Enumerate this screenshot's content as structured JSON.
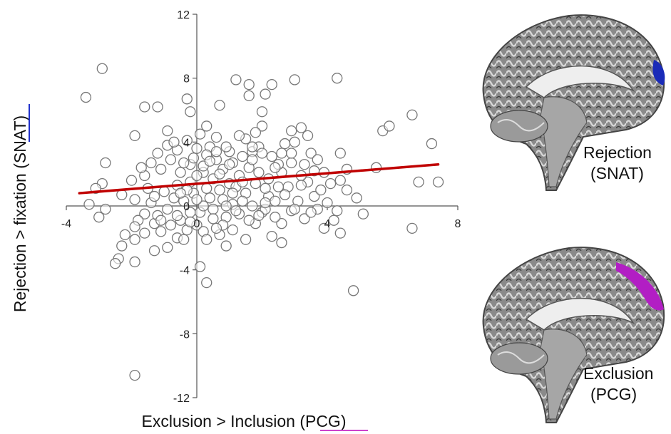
{
  "chart_data": {
    "type": "scatter",
    "xlabel_prefix": "Exclusion > Inclusion (",
    "xlabel_region": "PCG",
    "xlabel_suffix": ")",
    "ylabel_prefix": "Rejection > fixation (",
    "ylabel_region": "SNAT",
    "ylabel_suffix": ")",
    "xlim": [
      -4,
      8
    ],
    "ylim": [
      -12,
      12
    ],
    "x_ticks": [
      -4,
      0,
      4,
      8
    ],
    "y_ticks": [
      -12,
      -8,
      -4,
      0,
      4,
      8,
      12
    ],
    "trendline": {
      "x1": -3.6,
      "y1": 0.8,
      "x2": 7.4,
      "y2": 2.6,
      "color": "#c00000"
    },
    "marker_edge_color": "#777777",
    "points": [
      [
        -3.4,
        6.8
      ],
      [
        -2.9,
        8.6
      ],
      [
        -1.6,
        6.2
      ],
      [
        -1.2,
        6.2
      ],
      [
        -0.9,
        4.7
      ],
      [
        -1.9,
        4.4
      ],
      [
        -2.8,
        2.7
      ],
      [
        -2.9,
        1.4
      ],
      [
        -3.1,
        1.1
      ],
      [
        -3.3,
        0.1
      ],
      [
        -3.0,
        -0.7
      ],
      [
        -2.8,
        -0.2
      ],
      [
        -2.3,
        0.7
      ],
      [
        -1.9,
        0.4
      ],
      [
        -2.0,
        1.6
      ],
      [
        -1.6,
        1.9
      ],
      [
        -1.5,
        1.1
      ],
      [
        -1.6,
        -0.5
      ],
      [
        -1.4,
        0.2
      ],
      [
        -1.8,
        -0.9
      ],
      [
        -1.9,
        -1.3
      ],
      [
        -1.6,
        -1.7
      ],
      [
        -1.3,
        -1.1
      ],
      [
        -1.2,
        -0.6
      ],
      [
        -2.3,
        -2.5
      ],
      [
        -1.9,
        -2.1
      ],
      [
        -2.4,
        -3.3
      ],
      [
        -2.5,
        -3.6
      ],
      [
        -1.9,
        -3.5
      ],
      [
        -1.3,
        -2.8
      ],
      [
        -0.9,
        -2.6
      ],
      [
        -0.6,
        -2.0
      ],
      [
        -0.8,
        -1.2
      ],
      [
        -0.5,
        -0.9
      ],
      [
        -0.3,
        -1.5
      ],
      [
        -0.2,
        -0.4
      ],
      [
        0.0,
        -1.2
      ],
      [
        0.2,
        -1.6
      ],
      [
        0.3,
        -2.1
      ],
      [
        0.1,
        -3.8
      ],
      [
        -1.9,
        -10.6
      ],
      [
        0.3,
        -4.8
      ],
      [
        -0.3,
        6.7
      ],
      [
        -0.2,
        5.9
      ],
      [
        0.3,
        5.0
      ],
      [
        1.2,
        7.9
      ],
      [
        1.6,
        7.6
      ],
      [
        0.7,
        6.3
      ],
      [
        1.6,
        6.9
      ],
      [
        2.0,
        5.9
      ],
      [
        2.1,
        7.0
      ],
      [
        2.3,
        7.6
      ],
      [
        3.0,
        7.9
      ],
      [
        4.3,
        8.0
      ],
      [
        2.0,
        5.0
      ],
      [
        2.6,
        3.3
      ],
      [
        2.9,
        4.7
      ],
      [
        3.0,
        4.0
      ],
      [
        3.2,
        4.9
      ],
      [
        3.4,
        4.4
      ],
      [
        3.5,
        3.3
      ],
      [
        3.7,
        2.9
      ],
      [
        3.4,
        1.5
      ],
      [
        3.6,
        0.6
      ],
      [
        3.1,
        0.3
      ],
      [
        2.9,
        -0.3
      ],
      [
        3.3,
        -0.8
      ],
      [
        3.7,
        -0.2
      ],
      [
        4.0,
        0.2
      ],
      [
        4.2,
        -0.9
      ],
      [
        3.9,
        -1.4
      ],
      [
        2.6,
        -1.1
      ],
      [
        2.4,
        -0.7
      ],
      [
        2.0,
        -0.4
      ],
      [
        1.8,
        -1.1
      ],
      [
        1.3,
        -0.5
      ],
      [
        1.1,
        0.1
      ],
      [
        1.5,
        0.8
      ],
      [
        1.8,
        1.4
      ],
      [
        2.2,
        1.7
      ],
      [
        2.6,
        2.1
      ],
      [
        2.8,
        1.2
      ],
      [
        3.2,
        1.9
      ],
      [
        3.6,
        2.2
      ],
      [
        4.4,
        3.3
      ],
      [
        4.6,
        2.3
      ],
      [
        4.4,
        1.6
      ],
      [
        4.6,
        1.0
      ],
      [
        4.9,
        0.5
      ],
      [
        5.1,
        -0.5
      ],
      [
        4.4,
        -1.7
      ],
      [
        4.8,
        -5.3
      ],
      [
        5.7,
        4.7
      ],
      [
        5.9,
        5.0
      ],
      [
        6.6,
        5.7
      ],
      [
        6.8,
        1.5
      ],
      [
        6.6,
        -1.4
      ],
      [
        7.2,
        3.9
      ],
      [
        7.4,
        1.5
      ],
      [
        5.5,
        2.4
      ],
      [
        2.3,
        -1.9
      ],
      [
        2.6,
        -2.3
      ],
      [
        0.9,
        -2.5
      ],
      [
        0.7,
        -1.8
      ],
      [
        1.1,
        -1.5
      ],
      [
        1.5,
        -2.1
      ],
      [
        -0.1,
        0.8
      ],
      [
        0.3,
        1.1
      ],
      [
        0.5,
        1.7
      ],
      [
        0.8,
        2.3
      ],
      [
        1.1,
        2.7
      ],
      [
        1.4,
        3.1
      ],
      [
        1.7,
        3.4
      ],
      [
        1.9,
        3.7
      ],
      [
        2.3,
        3.1
      ],
      [
        2.5,
        2.6
      ],
      [
        2.9,
        2.7
      ],
      [
        0.4,
        3.7
      ],
      [
        0.6,
        4.3
      ],
      [
        0.1,
        4.5
      ],
      [
        -0.3,
        4.1
      ],
      [
        -0.6,
        3.5
      ],
      [
        -0.8,
        2.9
      ],
      [
        -1.1,
        2.3
      ],
      [
        -1.4,
        2.7
      ],
      [
        -1.2,
        3.3
      ],
      [
        -0.9,
        3.8
      ],
      [
        -0.5,
        2.1
      ],
      [
        -0.2,
        2.6
      ],
      [
        0.2,
        2.1
      ],
      [
        0.6,
        2.9
      ],
      [
        1.0,
        1.4
      ],
      [
        1.3,
        1.9
      ],
      [
        1.6,
        2.4
      ],
      [
        1.9,
        2.1
      ],
      [
        2.2,
        0.6
      ],
      [
        0.8,
        0.4
      ],
      [
        0.5,
        -0.2
      ],
      [
        0.9,
        -0.7
      ],
      [
        1.4,
        0.3
      ],
      [
        1.7,
        0.0
      ],
      [
        2.1,
        -0.2
      ],
      [
        2.4,
        0.3
      ],
      [
        2.7,
        0.7
      ],
      [
        3.0,
        -0.2
      ],
      [
        -0.4,
        0.3
      ],
      [
        -0.7,
        0.5
      ],
      [
        -1.0,
        0.9
      ],
      [
        -0.6,
        1.3
      ],
      [
        -0.2,
        1.5
      ],
      [
        0.1,
        -0.4
      ],
      [
        0.4,
        0.5
      ],
      [
        0.7,
        1.0
      ],
      [
        1.2,
        1.2
      ],
      [
        1.0,
        3.4
      ],
      [
        1.5,
        4.2
      ],
      [
        1.8,
        4.6
      ],
      [
        2.0,
        3.3
      ],
      [
        0.9,
        3.7
      ],
      [
        0.3,
        3.2
      ],
      [
        -0.1,
        3.0
      ],
      [
        -0.4,
        2.7
      ],
      [
        0.2,
        2.5
      ],
      [
        0.7,
        2.0
      ],
      [
        1.1,
        0.8
      ],
      [
        1.4,
        1.5
      ],
      [
        2.4,
        2.4
      ],
      [
        2.9,
        3.3
      ],
      [
        3.3,
        2.6
      ],
      [
        3.9,
        2.1
      ],
      [
        4.1,
        1.4
      ],
      [
        3.8,
        1.0
      ],
      [
        3.5,
        -0.4
      ],
      [
        4.3,
        -0.3
      ],
      [
        0.0,
        1.9
      ],
      [
        -0.3,
        1.0
      ],
      [
        0.2,
        0.0
      ],
      [
        0.5,
        -0.8
      ],
      [
        0.8,
        -1.2
      ],
      [
        1.2,
        -0.3
      ],
      [
        1.6,
        -0.9
      ],
      [
        2.1,
        0.2
      ],
      [
        -0.9,
        -0.2
      ],
      [
        -1.1,
        -0.9
      ],
      [
        -1.3,
        0.6
      ],
      [
        -0.6,
        -0.6
      ],
      [
        0.0,
        3.6
      ],
      [
        0.4,
        2.8
      ],
      [
        1.7,
        2.9
      ],
      [
        2.5,
        1.2
      ],
      [
        3.2,
        1.3
      ],
      [
        -1.7,
        2.4
      ],
      [
        -0.7,
        4.0
      ],
      [
        0.6,
        3.4
      ],
      [
        1.3,
        4.4
      ],
      [
        1.7,
        3.7
      ],
      [
        2.1,
        1.1
      ],
      [
        -0.5,
        0.8
      ],
      [
        0.9,
        0.0
      ],
      [
        1.9,
        -0.6
      ],
      [
        -0.2,
        -1.0
      ],
      [
        0.6,
        -1.4
      ],
      [
        -2.2,
        -1.8
      ],
      [
        -0.4,
        -2.1
      ],
      [
        -1.1,
        -1.6
      ],
      [
        0.0,
        0.4
      ],
      [
        1.0,
        2.6
      ],
      [
        2.7,
        3.9
      ]
    ]
  },
  "panels": [
    {
      "line1": "Rejection",
      "line2": "(SNAT)",
      "highlight_color": "#1a2bb8"
    },
    {
      "line1": "Exclusion",
      "line2": "(PCG)",
      "highlight_color": "#b21ec4"
    }
  ],
  "underline_colors": {
    "snat": "#2233cc",
    "pcg": "#cc44cc"
  }
}
